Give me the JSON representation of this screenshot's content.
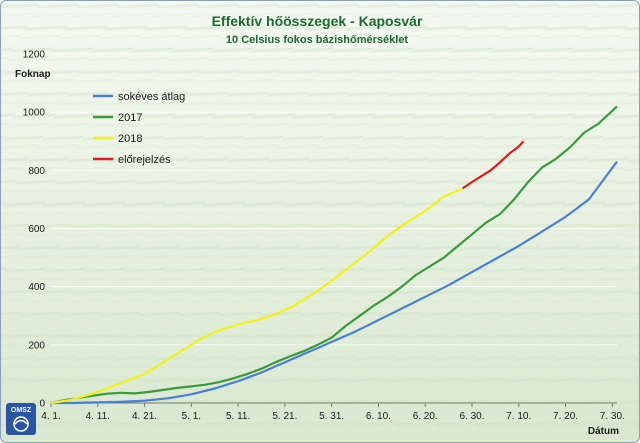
{
  "chart_data": {
    "type": "line",
    "title": "Effektív hőösszegek - Kaposvár",
    "subtitle": "10 Celsius fokos bázishőmérséklet",
    "ylabel": "Foknap",
    "xlabel": "Dátum",
    "ylim": [
      0,
      1200
    ],
    "yticks": [
      0,
      200,
      400,
      600,
      800,
      1000,
      1200
    ],
    "xlim_day": [
      0,
      121
    ],
    "xticks": [
      {
        "day": 0,
        "label": "4. 1."
      },
      {
        "day": 10,
        "label": "4. 11."
      },
      {
        "day": 20,
        "label": "4. 21."
      },
      {
        "day": 30,
        "label": "5. 1."
      },
      {
        "day": 40,
        "label": "5. 11."
      },
      {
        "day": 50,
        "label": "5. 21."
      },
      {
        "day": 60,
        "label": "5. 31."
      },
      {
        "day": 70,
        "label": "6. 10."
      },
      {
        "day": 80,
        "label": "6. 20."
      },
      {
        "day": 90,
        "label": "6. 30."
      },
      {
        "day": 100,
        "label": "7. 10."
      },
      {
        "day": 110,
        "label": "7. 20."
      },
      {
        "day": 120,
        "label": "7. 30."
      }
    ],
    "grid": true,
    "legend_position": "top-left",
    "series": [
      {
        "name": "sokéves átlag",
        "color": "#4a7fd6",
        "day": [
          0,
          5,
          10,
          15,
          20,
          25,
          30,
          35,
          40,
          45,
          50,
          55,
          60,
          65,
          70,
          75,
          80,
          85,
          90,
          95,
          100,
          105,
          110,
          115,
          121
        ],
        "values": [
          0,
          0,
          2,
          4,
          8,
          16,
          30,
          50,
          75,
          105,
          140,
          175,
          210,
          245,
          285,
          325,
          365,
          405,
          450,
          495,
          540,
          590,
          640,
          700,
          830
        ]
      },
      {
        "name": "2017",
        "color": "#3a9a3c",
        "day": [
          0,
          3,
          6,
          9,
          12,
          15,
          18,
          21,
          24,
          27,
          30,
          33,
          36,
          39,
          42,
          45,
          48,
          51,
          54,
          57,
          60,
          63,
          66,
          69,
          72,
          75,
          78,
          81,
          84,
          87,
          90,
          93,
          96,
          99,
          102,
          105,
          108,
          111,
          114,
          117,
          121
        ],
        "values": [
          0,
          10,
          18,
          25,
          32,
          35,
          33,
          38,
          45,
          52,
          57,
          63,
          72,
          85,
          100,
          118,
          140,
          160,
          178,
          200,
          225,
          265,
          300,
          335,
          365,
          400,
          440,
          470,
          500,
          540,
          580,
          620,
          650,
          700,
          760,
          810,
          840,
          880,
          930,
          960,
          1020
        ]
      },
      {
        "name": "2018",
        "color": "#f2f21a",
        "day": [
          0,
          4,
          8,
          12,
          16,
          20,
          24,
          28,
          32,
          36,
          40,
          44,
          48,
          52,
          56,
          60,
          64,
          68,
          72,
          76,
          80,
          84,
          88
        ],
        "values": [
          0,
          10,
          28,
          50,
          75,
          100,
          140,
          180,
          220,
          250,
          270,
          285,
          305,
          335,
          375,
          420,
          470,
          520,
          575,
          620,
          660,
          710,
          738
        ]
      },
      {
        "name": "előrejelzés",
        "color": "#e41a1a",
        "day": [
          88,
          90,
          92,
          94,
          96,
          98,
          100,
          101
        ],
        "values": [
          738,
          760,
          780,
          800,
          828,
          858,
          882,
          900
        ]
      }
    ]
  },
  "logo": {
    "text": "OMSZ"
  }
}
